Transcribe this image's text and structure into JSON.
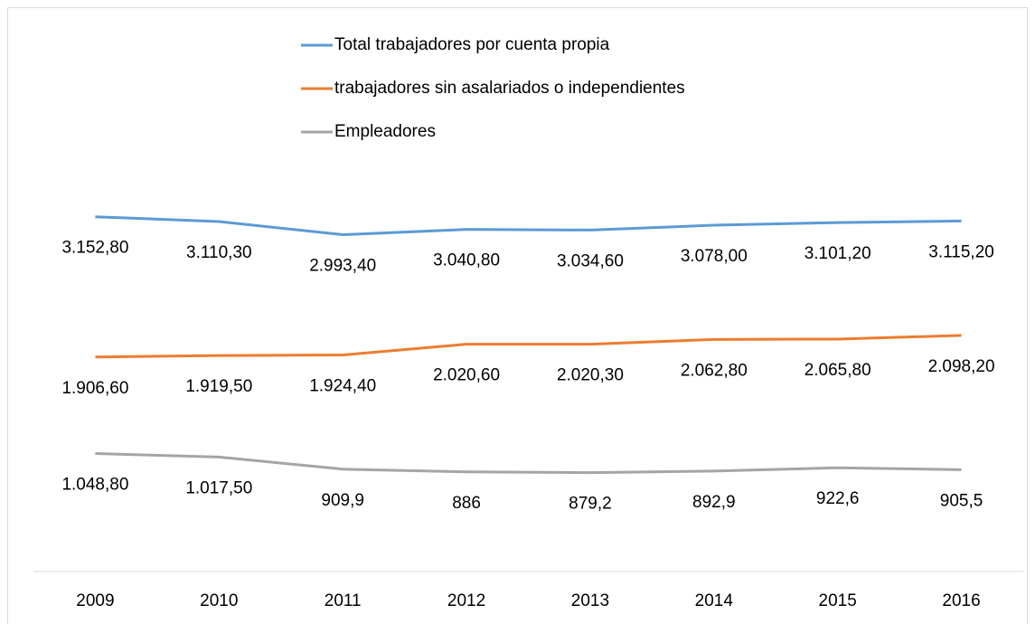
{
  "chart_data": {
    "type": "line",
    "categories": [
      "2009",
      "2010",
      "2011",
      "2012",
      "2013",
      "2014",
      "2015",
      "2016"
    ],
    "series": [
      {
        "name": "Total trabajadores por cuenta propia",
        "color": "#5b9bd5",
        "values": [
          3152.8,
          3110.3,
          2993.4,
          3040.8,
          3034.6,
          3078.0,
          3101.2,
          3115.2
        ],
        "value_labels": [
          "3.152,80",
          "3.110,30",
          "2.993,40",
          "3.040,80",
          "3.034,60",
          "3.078,00",
          "3.101,20",
          "3.115,20"
        ]
      },
      {
        "name": "trabajadores sin asalariados o independientes",
        "color": "#ed7d31",
        "values": [
          1906.6,
          1919.5,
          1924.4,
          2020.6,
          2020.3,
          2062.8,
          2065.8,
          2098.2
        ],
        "value_labels": [
          "1.906,60",
          "1.919,50",
          "1.924,40",
          "2.020,60",
          "2.020,30",
          "2.062,80",
          "2.065,80",
          "2.098,20"
        ]
      },
      {
        "name": "Empleadores",
        "color": "#a5a5a5",
        "values": [
          1048.8,
          1017.5,
          909.9,
          886,
          879.2,
          892.9,
          922.6,
          905.5
        ],
        "value_labels": [
          "1.048,80",
          "1.017,50",
          "909,9",
          "886",
          "879,2",
          "892,9",
          "922,6",
          "905,5"
        ]
      }
    ],
    "ylim": [
      0,
      3500
    ],
    "legend": "top"
  }
}
